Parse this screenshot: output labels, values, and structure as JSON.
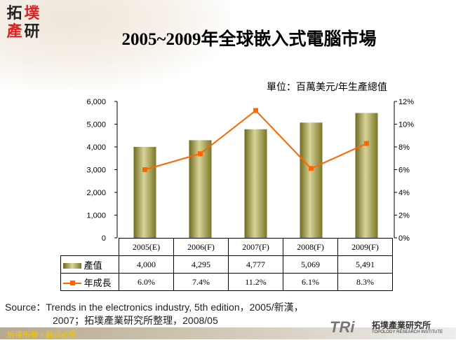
{
  "logo": {
    "chars": [
      "拓",
      "墣",
      "產",
      "研"
    ]
  },
  "title": "2005~2009年全球嵌入式電腦市場",
  "unit": "單位：百萬美元/年生產總值",
  "chart_data": {
    "type": "bar+line",
    "title": "2005~2009年全球嵌入式電腦市場",
    "categories": [
      "2005(E)",
      "2006(F)",
      "2007(F)",
      "2008(F)",
      "2009(F)"
    ],
    "series": [
      {
        "name": "產值",
        "type": "bar",
        "axis": "left",
        "values": [
          4000,
          4295,
          4777,
          5069,
          5491
        ],
        "labels": [
          "4,000",
          "4,295",
          "4,777",
          "5,069",
          "5,491"
        ],
        "color": "#a09a3a"
      },
      {
        "name": "年成長",
        "type": "line",
        "axis": "right",
        "values": [
          6.0,
          7.4,
          11.2,
          6.1,
          8.3
        ],
        "labels": [
          "6.0%",
          "7.4%",
          "11.2%",
          "6.1%",
          "8.3%"
        ],
        "color": "#ff6600"
      }
    ],
    "ylim": [
      0,
      6000
    ],
    "yticks": [
      "0",
      "1,000",
      "2,000",
      "3,000",
      "4,000",
      "5,000",
      "6,000"
    ],
    "y2lim": [
      0,
      12
    ],
    "y2ticks": [
      "0%",
      "2%",
      "4%",
      "6%",
      "8%",
      "10%",
      "12%"
    ],
    "grid": false,
    "legend": "data-table"
  },
  "source": {
    "line1": "Source：Trends in the electronics industry, 5th edition，2005/新漢，",
    "line2": "2007；拓墣產業研究所整理，2008/05"
  },
  "footer": {
    "copyright": "版權所有・翻印必究",
    "brand_mark": "TRi",
    "brand_cn": "拓墣產業研究所",
    "brand_en": "TOPOLOGY RESEARCH INSTITUTE"
  }
}
